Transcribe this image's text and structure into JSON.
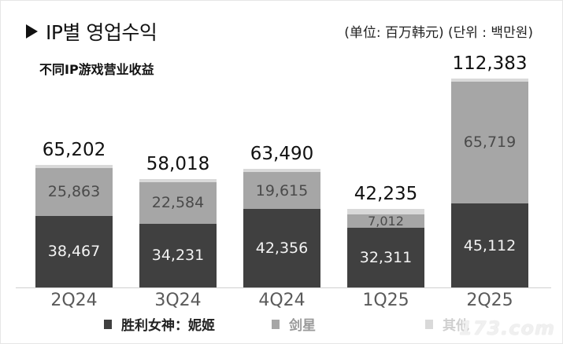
{
  "header": {
    "title": "IP별 영업수익",
    "subtitle": "不同IP游戏营业收益",
    "unit": "(单位:  百万韩元) (단위 : 백만원)"
  },
  "colors": {
    "nikke": "#404040",
    "stellar_blade": "#a6a6a6",
    "others": "#d9d9d9"
  },
  "bars": [
    {
      "label": "2Q24",
      "total": "65,202",
      "s1": "38,467",
      "s2": "25,863"
    },
    {
      "label": "3Q24",
      "total": "58,018",
      "s1": "34,231",
      "s2": "22,584"
    },
    {
      "label": "4Q24",
      "total": "63,490",
      "s1": "42,356",
      "s2": "19,615"
    },
    {
      "label": "1Q25",
      "total": "42,235",
      "s1": "32,311",
      "s2": "7,012"
    },
    {
      "label": "2Q25",
      "total": "112,383",
      "s1": "45,112",
      "s2": "65,719"
    }
  ],
  "legend": [
    {
      "label": "胜利女神：妮姬"
    },
    {
      "label": "剑星"
    },
    {
      "label": "其他"
    }
  ],
  "watermark": "173.com",
  "chart_data": {
    "type": "bar",
    "stacked": true,
    "title": "IP별 영업수익 / 不同IP游戏营业收益",
    "subtitle": "(单位: 百万韩元) (단위 : 백만원)",
    "categories": [
      "2Q24",
      "3Q24",
      "4Q24",
      "1Q25",
      "2Q25"
    ],
    "series": [
      {
        "name": "胜利女神：妮姬",
        "values": [
          38467,
          34231,
          42356,
          32311,
          45112
        ]
      },
      {
        "name": "剑星",
        "values": [
          25863,
          22584,
          19615,
          7012,
          65719
        ]
      },
      {
        "name": "其他",
        "values": [
          872,
          1203,
          1519,
          2912,
          1552
        ]
      }
    ],
    "totals": [
      65202,
      58018,
      63490,
      42235,
      112383
    ],
    "xlabel": "",
    "ylabel": "百万韩元",
    "ylim": [
      0,
      120000
    ],
    "grid": false,
    "legend_position": "bottom"
  }
}
